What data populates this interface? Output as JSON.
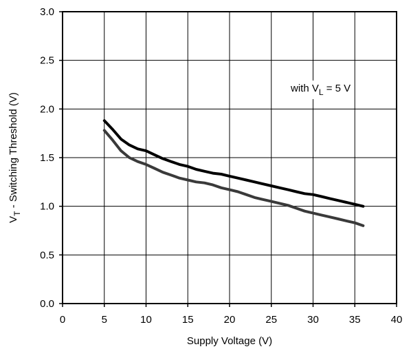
{
  "chart_data": {
    "type": "line",
    "title": "",
    "xlabel": "Supply Voltage (V)",
    "ylabel": {
      "main": "V",
      "sub": "T",
      "rest": " - Switching Threshold (V)"
    },
    "xlim": [
      0,
      40
    ],
    "ylim": [
      0,
      3.0
    ],
    "xticks": [
      "0",
      "5",
      "10",
      "15",
      "20",
      "25",
      "30",
      "35",
      "40"
    ],
    "yticks": [
      "0.0",
      "0.5",
      "1.0",
      "1.5",
      "2.0",
      "2.5",
      "3.0"
    ],
    "grid": true,
    "annotation": {
      "pre": "with V",
      "sub": "L",
      "post": " = 5 V"
    },
    "series": [
      {
        "color": "#000000",
        "x": [
          5,
          6,
          7,
          8,
          9,
          10,
          11,
          12,
          13,
          14,
          15,
          16,
          17,
          18,
          19,
          20,
          21,
          22,
          23,
          24,
          25,
          26,
          27,
          28,
          29,
          30,
          31,
          32,
          33,
          34,
          35,
          36
        ],
        "y": [
          1.88,
          1.79,
          1.69,
          1.63,
          1.59,
          1.57,
          1.53,
          1.49,
          1.46,
          1.43,
          1.41,
          1.38,
          1.36,
          1.34,
          1.33,
          1.31,
          1.29,
          1.27,
          1.25,
          1.23,
          1.21,
          1.19,
          1.17,
          1.15,
          1.13,
          1.12,
          1.1,
          1.08,
          1.06,
          1.04,
          1.02,
          1.0
        ]
      },
      {
        "color": "#3a3a3a",
        "x": [
          5,
          6,
          7,
          8,
          9,
          10,
          11,
          12,
          13,
          14,
          15,
          16,
          17,
          18,
          19,
          20,
          21,
          22,
          23,
          24,
          25,
          26,
          27,
          28,
          29,
          30,
          31,
          32,
          33,
          34,
          35,
          36
        ],
        "y": [
          1.78,
          1.68,
          1.57,
          1.5,
          1.46,
          1.43,
          1.39,
          1.35,
          1.32,
          1.29,
          1.27,
          1.25,
          1.24,
          1.22,
          1.19,
          1.17,
          1.15,
          1.12,
          1.09,
          1.07,
          1.05,
          1.03,
          1.01,
          0.98,
          0.95,
          0.93,
          0.91,
          0.89,
          0.87,
          0.85,
          0.83,
          0.8
        ]
      }
    ]
  }
}
